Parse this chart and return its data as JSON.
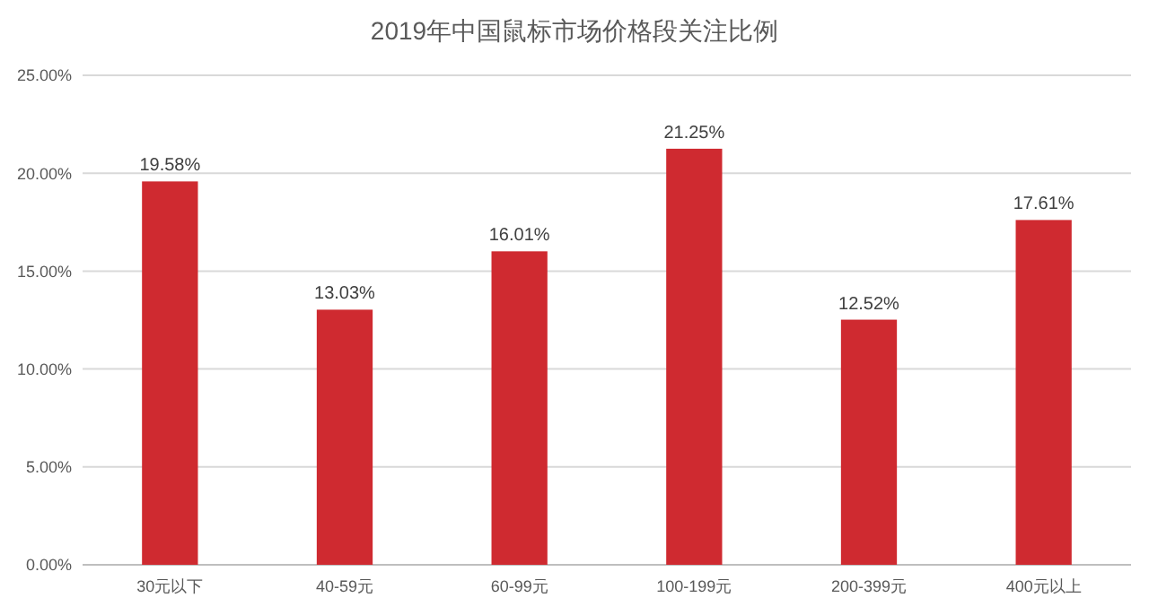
{
  "chart_data": {
    "type": "bar",
    "title": "2019年中国鼠标市场价格段关注比例",
    "categories": [
      "30元以下",
      "40-59元",
      "60-99元",
      "100-199元",
      "200-399元",
      "400元以上"
    ],
    "values": [
      19.58,
      13.03,
      16.01,
      21.25,
      12.52,
      17.61
    ],
    "value_labels": [
      "19.58%",
      "13.03%",
      "16.01%",
      "21.25%",
      "12.52%",
      "17.61%"
    ],
    "color": "#cf2a30",
    "ylim": [
      0,
      25
    ],
    "yticks": [
      {
        "value": 0,
        "label": "0.00%"
      },
      {
        "value": 5,
        "label": "5.00%"
      },
      {
        "value": 10,
        "label": "10.00%"
      },
      {
        "value": 15,
        "label": "15.00%"
      },
      {
        "value": 20,
        "label": "20.00%"
      },
      {
        "value": 25,
        "label": "25.00%"
      }
    ],
    "grid": "y"
  }
}
